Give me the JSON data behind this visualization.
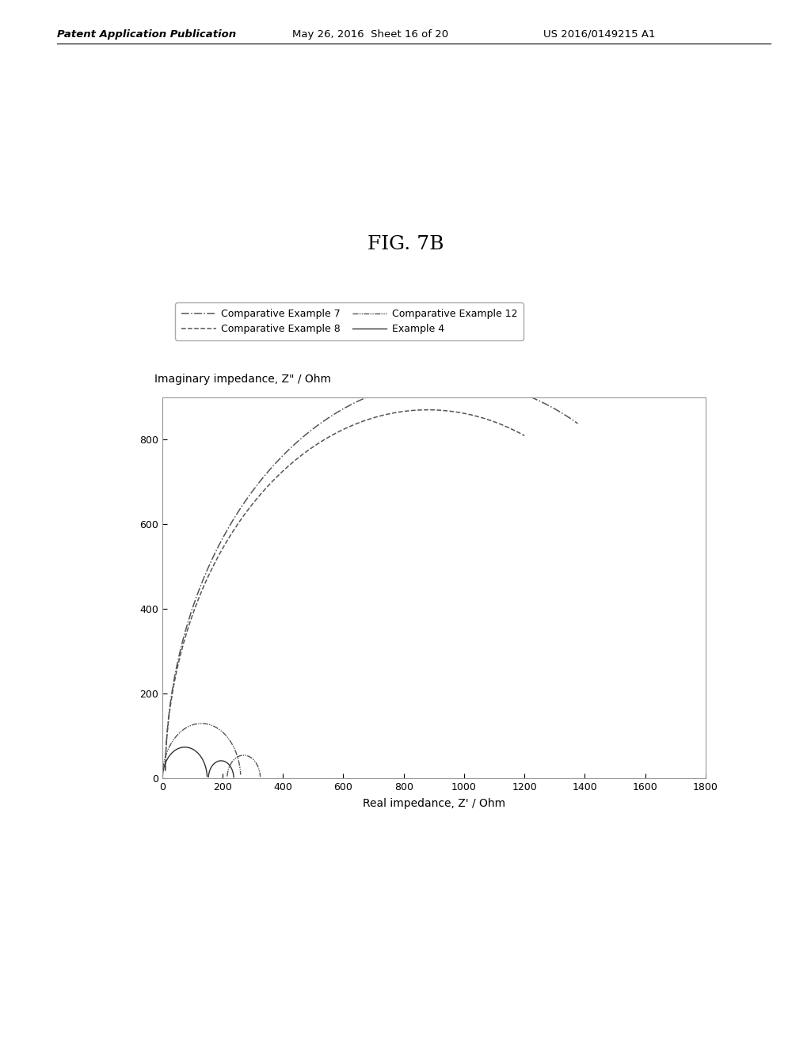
{
  "title": "FIG. 7B",
  "ylabel": "Imaginary impedance, Z\" / Ohm",
  "xlabel": "Real impedance, Z' / Ohm",
  "xlim": [
    0,
    1800
  ],
  "ylim": [
    0,
    900
  ],
  "xticks": [
    0,
    200,
    400,
    600,
    800,
    1000,
    1200,
    1400,
    1600,
    1800
  ],
  "yticks": [
    0,
    200,
    400,
    600,
    800
  ],
  "header_left": "Patent Application Publication",
  "header_center": "May 26, 2016  Sheet 16 of 20",
  "header_right": "US 2016/0149215 A1",
  "background_color": "#ffffff",
  "plot_bg_color": "#ffffff",
  "line_color": "#555555",
  "title_fontsize": 18,
  "axis_fontsize": 10,
  "tick_fontsize": 9,
  "legend_fontsize": 9
}
